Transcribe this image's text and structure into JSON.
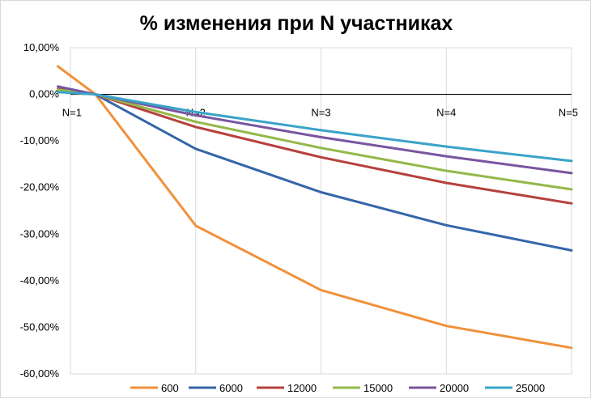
{
  "chart_data": {
    "type": "line",
    "title": "% изменения при N участниках",
    "xlabel": "",
    "ylabel": "",
    "categories": [
      "N=1",
      "N=2",
      "N=3",
      "N=4",
      "N=5"
    ],
    "y_tick_labels": [
      "10,00%",
      "0,00%",
      "-10,00%",
      "-20,00%",
      "-30,00%",
      "-40,00%",
      "-50,00%",
      "-60,00%"
    ],
    "ylim": [
      -60,
      10
    ],
    "grid": "vertical",
    "legend_position": "bottom",
    "series": [
      {
        "name": "600",
        "color": "#f0913a",
        "points": [
          [
            0.9,
            6.0
          ],
          [
            1.2,
            0
          ],
          [
            2,
            -28.2
          ],
          [
            3,
            -42.0
          ],
          [
            4,
            -49.7
          ],
          [
            5,
            -54.4
          ]
        ]
      },
      {
        "name": "6000",
        "color": "#3566a8",
        "points": [
          [
            0.9,
            0.8
          ],
          [
            1.2,
            0
          ],
          [
            2,
            -11.7
          ],
          [
            3,
            -21.0
          ],
          [
            4,
            -28.1
          ],
          [
            5,
            -33.5
          ]
        ]
      },
      {
        "name": "12000",
        "color": "#b5413d",
        "points": [
          [
            0.9,
            1.2
          ],
          [
            1.2,
            0
          ],
          [
            2,
            -7.0
          ],
          [
            3,
            -13.5
          ],
          [
            4,
            -19.0
          ],
          [
            5,
            -23.4
          ]
        ]
      },
      {
        "name": "15000",
        "color": "#94b84a",
        "points": [
          [
            0.9,
            1.0
          ],
          [
            1.2,
            0
          ],
          [
            2,
            -5.9
          ],
          [
            3,
            -11.5
          ],
          [
            4,
            -16.4
          ],
          [
            5,
            -20.4
          ]
        ]
      },
      {
        "name": "20000",
        "color": "#7855a0",
        "points": [
          [
            0.9,
            1.7
          ],
          [
            1.2,
            0
          ],
          [
            2,
            -4.5
          ],
          [
            3,
            -9.2
          ],
          [
            4,
            -13.3
          ],
          [
            5,
            -16.9
          ]
        ]
      },
      {
        "name": "25000",
        "color": "#3aa3c8",
        "points": [
          [
            0.9,
            0.5
          ],
          [
            1.2,
            0
          ],
          [
            2,
            -3.8
          ],
          [
            3,
            -7.7
          ],
          [
            4,
            -11.2
          ],
          [
            5,
            -14.3
          ]
        ]
      }
    ]
  }
}
